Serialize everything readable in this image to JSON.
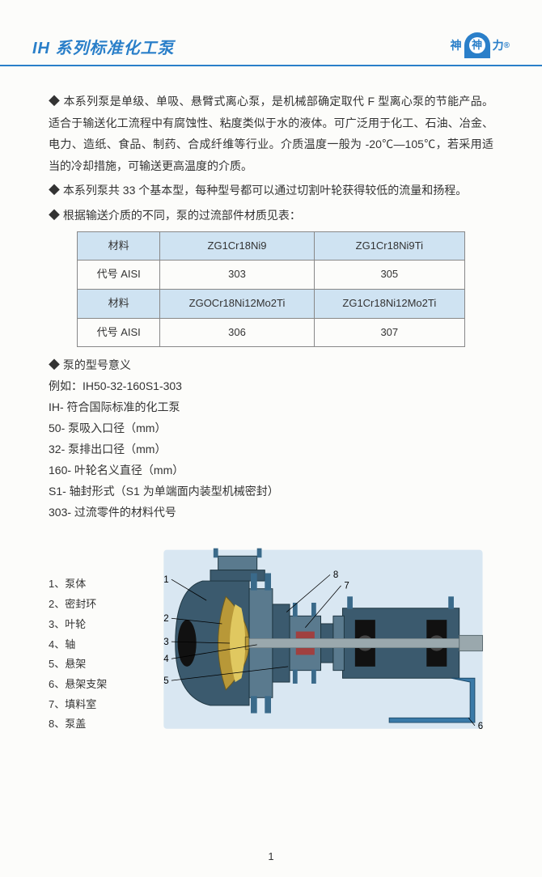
{
  "header": {
    "title": "IH 系列标准化工泵",
    "logo_left": "神",
    "logo_char": "神",
    "logo_right": "力",
    "logo_r": "®"
  },
  "intro": {
    "p1": "本系列泵是单级、单吸、悬臂式离心泵，是机械部确定取代 F 型离心泵的节能产品。适合于输送化工流程中有腐蚀性、粘度类似于水的液体。可广泛用于化工、石油、冶金、电力、造纸、食品、制药、合成纤维等行业。介质温度一般为 -20℃—105℃，若采用适当的冷却措施，可输送更高温度的介质。",
    "p2": "本系列泵共 33 个基本型，每种型号都可以通过切割叶轮获得较低的流量和扬程。",
    "p3": "根据输送介质的不同，泵的过流部件材质见表："
  },
  "table": {
    "labels": {
      "material": "材料",
      "code": "代号 AISI"
    },
    "rows": [
      {
        "c1": "ZG1Cr18Ni9",
        "c2": "ZG1Cr18Ni9Ti"
      },
      {
        "c1": "303",
        "c2": "305"
      },
      {
        "c1": "ZGOCr18Ni12Mo2Ti",
        "c2": "ZG1Cr18Ni12Mo2Ti"
      },
      {
        "c1": "306",
        "c2": "307"
      }
    ]
  },
  "model": {
    "heading": "泵的型号意义",
    "example_label": "例如：",
    "example": "IH50-32-160S1-303",
    "lines": [
      "IH- 符合国际标准的化工泵",
      "50- 泵吸入口径（mm）",
      "32- 泵排出口径（mm）",
      "160- 叶轮名义直径（mm）",
      "S1- 轴封形式（S1 为单端面内装型机械密封）",
      "303- 过流零件的材料代号"
    ]
  },
  "parts": [
    "1、泵体",
    "2、密封环",
    "3、叶轮",
    "4、轴",
    "5、悬架",
    "6、悬架支架",
    "7、填料室",
    "8、泵盖"
  ],
  "diagram": {
    "callouts": [
      "1",
      "2",
      "3",
      "4",
      "5",
      "6",
      "7",
      "8"
    ],
    "colors": {
      "bg": "#d9e7f2",
      "body": "#3b5a6e",
      "body_light": "#5a7a8e",
      "shaft": "#9aa8ad",
      "impeller": "#b89838",
      "impeller_hi": "#e0c860",
      "bolt": "#3a6a8a",
      "foot": "#3a7aa8",
      "seal": "#a04040"
    }
  },
  "page_number": "1"
}
